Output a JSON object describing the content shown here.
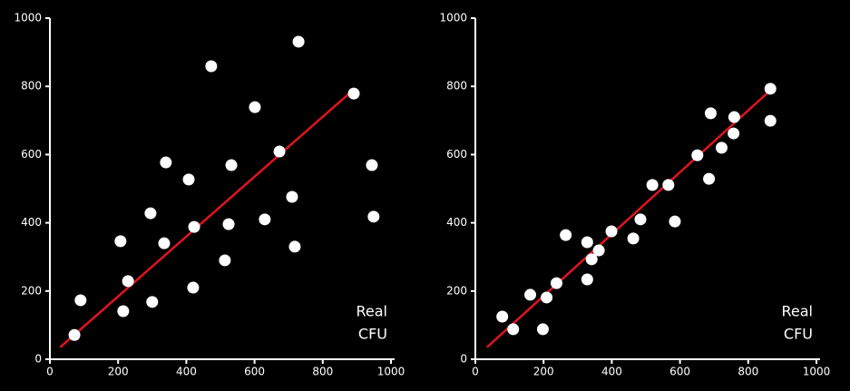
{
  "chart_data": [
    {
      "type": "scatter",
      "color": "#ffffff",
      "fit_color": "#e0141e",
      "x": [
        72,
        90,
        207,
        215,
        229,
        295,
        300,
        335,
        340,
        407,
        420,
        423,
        473,
        513,
        524,
        532,
        601,
        630,
        673,
        710,
        718,
        729,
        891,
        944,
        949
      ],
      "y": [
        71,
        173,
        346,
        141,
        229,
        428,
        168,
        340,
        577,
        527,
        210,
        388,
        859,
        290,
        396,
        569,
        739,
        410,
        609,
        476,
        330,
        931,
        779,
        569,
        418
      ],
      "fit": {
        "x": [
          30,
          890
        ],
        "y": [
          35,
          790
        ]
      },
      "xlim": [
        0,
        1000
      ],
      "ylim": [
        0,
        1000
      ],
      "xticks": [
        0,
        200,
        400,
        600,
        800,
        1000
      ],
      "yticks": [
        0,
        200,
        400,
        600,
        800,
        1000
      ],
      "annotations": [
        "Real",
        "CFU"
      ]
    },
    {
      "type": "scatter",
      "color": "#ffffff",
      "fit_color": "#e0141e",
      "x": [
        79,
        111,
        161,
        198,
        209,
        238,
        265,
        328,
        328,
        341,
        362,
        399,
        463,
        484,
        519,
        566,
        585,
        651,
        685,
        690,
        722,
        757,
        759,
        865,
        865
      ],
      "y": [
        125,
        88,
        189,
        88,
        181,
        223,
        364,
        343,
        234,
        293,
        319,
        375,
        354,
        410,
        511,
        511,
        404,
        598,
        529,
        721,
        620,
        662,
        710,
        699,
        793
      ],
      "fit": {
        "x": [
          34,
          870
        ],
        "y": [
          35,
          793
        ]
      },
      "xlim": [
        0,
        1000
      ],
      "ylim": [
        0,
        1000
      ],
      "xticks": [
        0,
        200,
        400,
        600,
        800,
        1000
      ],
      "yticks": [
        0,
        200,
        400,
        600,
        800,
        1000
      ],
      "annotations": [
        "Real",
        "CFU"
      ]
    }
  ]
}
